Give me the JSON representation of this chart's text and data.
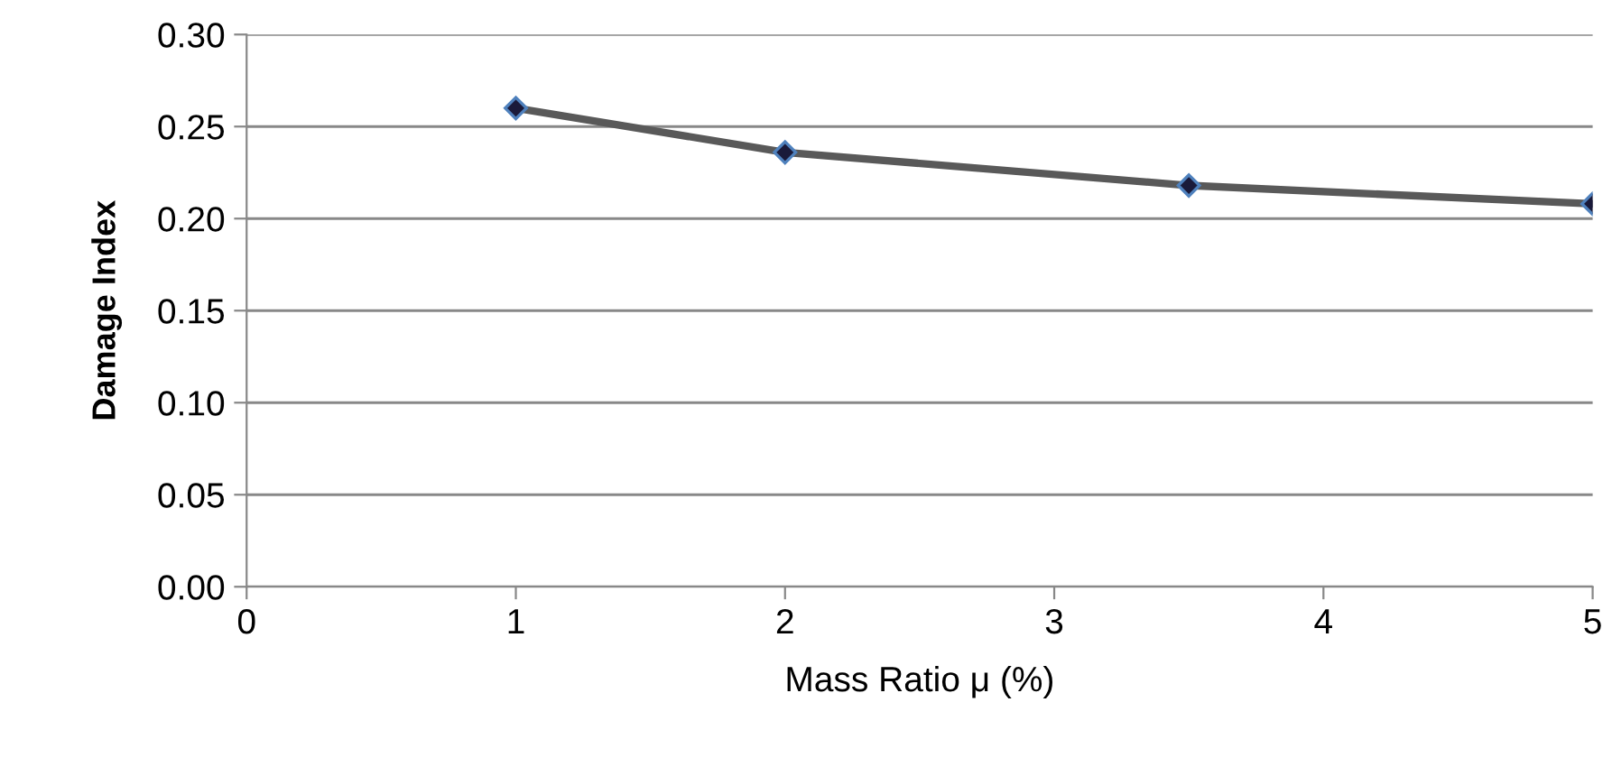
{
  "chart_data": {
    "type": "line",
    "xlabel": "Mass Ratio μ (%)",
    "ylabel": "Damage Index",
    "x": [
      1,
      2,
      3.5,
      5
    ],
    "series": [
      {
        "color": "#595959",
        "values": [
          0.26,
          0.236,
          0.218,
          0.208
        ]
      }
    ],
    "xlim": [
      0,
      5
    ],
    "xticks": [
      0,
      1,
      2,
      3,
      4,
      5
    ],
    "ylim": [
      0,
      0.3
    ],
    "yticks": [
      {
        "value": 0,
        "label": "0.00"
      },
      {
        "value": 0.05,
        "label": "0.05"
      },
      {
        "value": 0.1,
        "label": "0.10"
      },
      {
        "value": 0.15,
        "label": "0.15"
      },
      {
        "value": 0.2,
        "label": "0.20"
      },
      {
        "value": 0.25,
        "label": "0.25"
      },
      {
        "value": 0.3,
        "label": "0.30"
      }
    ],
    "grid": "y",
    "marker": "diamond",
    "line_style": "solid"
  }
}
